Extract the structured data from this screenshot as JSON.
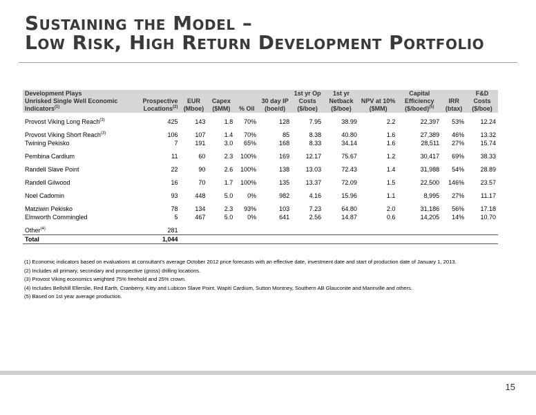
{
  "title": {
    "line1": "Sustaining the Model –",
    "line2": "Low Risk, High Return Development Portfolio"
  },
  "table": {
    "headers": {
      "plays": [
        "Development Plays",
        "Unrisked Single Well Economic",
        "Indicators"
      ],
      "plays_sup": "(1)",
      "locations": [
        "Prospective",
        "Locations"
      ],
      "locations_sup": "(2)",
      "eur": [
        "EUR",
        "(Mboe)"
      ],
      "capex": [
        "Capex",
        "($MM)"
      ],
      "oil": "% Oil",
      "ip": [
        "30 day IP",
        "(boe/d)"
      ],
      "opcost": [
        "1st yr Op",
        "Costs",
        "($/boe)"
      ],
      "netback": [
        "1st yr",
        "Netback",
        "($/boe)"
      ],
      "npv": [
        "NPV at 10%",
        "($MM)"
      ],
      "capeff": [
        "Capital",
        "Efficiency",
        "($/boed)"
      ],
      "capeff_sup": "(5)",
      "irr": [
        "IRR",
        "(btax)"
      ],
      "fd": [
        "F&D",
        "Costs",
        "($/boe)"
      ]
    },
    "rows": [
      {
        "name": "Provost Viking Long Reach",
        "sup": "(3)",
        "locations": "425",
        "eur": "143",
        "capex": "1.8",
        "oil": "70%",
        "ip": "128",
        "opcost": "7.95",
        "netback": "38.99",
        "npv": "2.2",
        "capeff": "22,397",
        "irr": "53%",
        "fd": "12.24"
      },
      {
        "name": "Provost Viking Short Reach",
        "sup": "(3)",
        "locations": "106",
        "eur": "107",
        "capex": "1.4",
        "oil": "70%",
        "ip": "85",
        "opcost": "8.38",
        "netback": "40.80",
        "npv": "1.6",
        "capeff": "27,389",
        "irr": "46%",
        "fd": "13.32"
      },
      {
        "name": "Twining Pekisko",
        "sup": "",
        "locations": "7",
        "eur": "191",
        "capex": "3.0",
        "oil": "65%",
        "ip": "168",
        "opcost": "8.33",
        "netback": "34.14",
        "npv": "1.6",
        "capeff": "28,511",
        "irr": "27%",
        "fd": "15.74"
      },
      {
        "name": "Pembina Cardium",
        "sup": "",
        "locations": "11",
        "eur": "60",
        "capex": "2.3",
        "oil": "100%",
        "ip": "169",
        "opcost": "12.17",
        "netback": "75.67",
        "npv": "1.2",
        "capeff": "30,417",
        "irr": "69%",
        "fd": "38.33"
      },
      {
        "name": "Randell Slave Point",
        "sup": "",
        "locations": "22",
        "eur": "90",
        "capex": "2.6",
        "oil": "100%",
        "ip": "138",
        "opcost": "13.03",
        "netback": "72.43",
        "npv": "1.4",
        "capeff": "31,988",
        "irr": "54%",
        "fd": "28.89"
      },
      {
        "name": "Randell Gilwood",
        "sup": "",
        "locations": "16",
        "eur": "70",
        "capex": "1.7",
        "oil": "100%",
        "ip": "135",
        "opcost": "13.37",
        "netback": "72.09",
        "npv": "1.5",
        "capeff": "22,500",
        "irr": "146%",
        "fd": "23.57"
      },
      {
        "name": "Noel Cadomin",
        "sup": "",
        "locations": "93",
        "eur": "448",
        "capex": "5.0",
        "oil": "0%",
        "ip": "982",
        "opcost": "4.16",
        "netback": "15.96",
        "npv": "1.1",
        "capeff": "8,995",
        "irr": "27%",
        "fd": "11.17"
      },
      {
        "name": "Matziwin Pekisko",
        "sup": "",
        "locations": "78",
        "eur": "134",
        "capex": "2.3",
        "oil": "93%",
        "ip": "103",
        "opcost": "7.23",
        "netback": "64.80",
        "npv": "2.0",
        "capeff": "31,186",
        "irr": "56%",
        "fd": "17.18"
      },
      {
        "name": "Elmworth Commingled",
        "sup": "",
        "locations": "5",
        "eur": "467",
        "capex": "5.0",
        "oil": "0%",
        "ip": "641",
        "opcost": "2.56",
        "netback": "14.87",
        "npv": "0.6",
        "capeff": "14,205",
        "irr": "14%",
        "fd": "10.70"
      },
      {
        "name": "Other",
        "sup": "(4)",
        "locations": "281",
        "eur": "",
        "capex": "",
        "oil": "",
        "ip": "",
        "opcost": "",
        "netback": "",
        "npv": "",
        "capeff": "",
        "irr": "",
        "fd": ""
      }
    ],
    "total": {
      "label": "Total",
      "locations": "1,044"
    }
  },
  "notes": [
    "(1) Economic indicators based on evaluations at consultant's average October 2012 price forecasts with an effective date, investment date and start of production date of January 1, 2013.",
    "(2) Includes all primary, secondary and prospective (gross) drilling locations.",
    "(3) Provost Viking economics weighted 75% freehold and 25% crown.",
    "(4) Includes Bellshill Ellerslie, Red Earth, Cranberry, Kitty and Lubicon Slave Point, Wapiti Cardium, Sutton Montney, Southern AB Glauconite and Mannville and others.",
    "(5) Based on 1st year average production."
  ],
  "page_number": "15"
}
